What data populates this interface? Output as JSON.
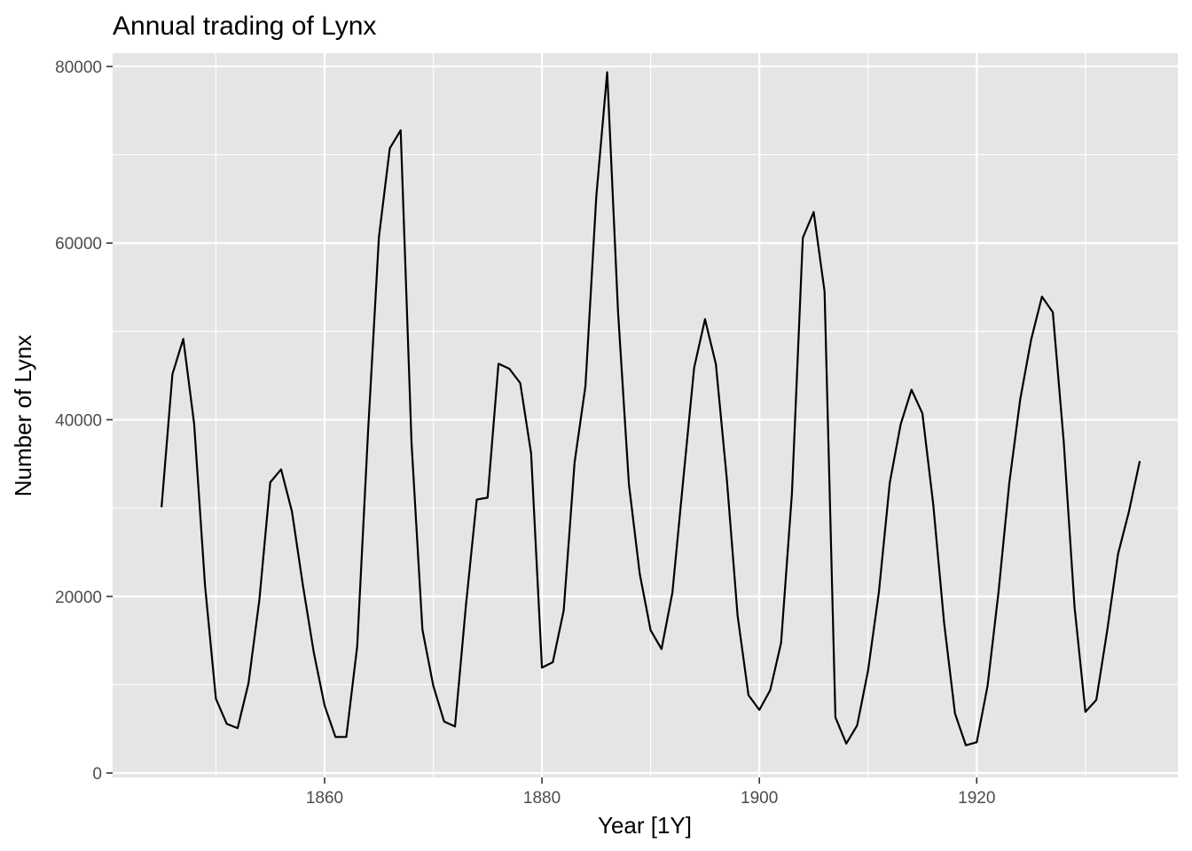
{
  "chart_data": {
    "type": "line",
    "title": "Annual trading of Lynx",
    "xlabel": "Year [1Y]",
    "ylabel": "Number of Lynx",
    "xlim": [
      1840.5,
      1938.5
    ],
    "ylim": [
      -500,
      81500
    ],
    "x_ticks": [
      1860,
      1880,
      1900,
      1920
    ],
    "x_minor_ticks": [
      1850,
      1870,
      1890,
      1910,
      1930
    ],
    "y_ticks": [
      0,
      20000,
      40000,
      60000,
      80000
    ],
    "y_minor_ticks": [
      10000,
      30000,
      50000,
      70000
    ],
    "x_tick_labels": [
      "1860",
      "1880",
      "1900",
      "1920"
    ],
    "y_tick_labels": [
      "0",
      "20000",
      "40000",
      "60000",
      "80000"
    ],
    "grid": true,
    "colors": {
      "panel": "#e5e5e5",
      "grid": "#ffffff",
      "line": "#000000"
    },
    "series": [
      {
        "x": [
          1845,
          1846,
          1847,
          1848,
          1849,
          1850,
          1851,
          1852,
          1853,
          1854,
          1855,
          1856,
          1857,
          1858,
          1859,
          1860,
          1861,
          1862,
          1863,
          1864,
          1865,
          1866,
          1867,
          1868,
          1869,
          1870,
          1871,
          1872,
          1873,
          1874,
          1875,
          1876,
          1877,
          1878,
          1879,
          1880,
          1881,
          1882,
          1883,
          1884,
          1885,
          1886,
          1887,
          1888,
          1889,
          1890,
          1891,
          1892,
          1893,
          1894,
          1895,
          1896,
          1897,
          1898,
          1899,
          1900,
          1901,
          1902,
          1903,
          1904,
          1905,
          1906,
          1907,
          1908,
          1909,
          1910,
          1911,
          1912,
          1913,
          1914,
          1915,
          1916,
          1917,
          1918,
          1919,
          1920,
          1921,
          1922,
          1923,
          1924,
          1925,
          1926,
          1927,
          1928,
          1929,
          1930,
          1931,
          1932,
          1933,
          1934,
          1935
        ],
        "values": [
          30090,
          45150,
          49150,
          39520,
          21230,
          8420,
          5560,
          5080,
          10170,
          19600,
          32910,
          34380,
          29590,
          21300,
          13690,
          7650,
          4080,
          4090,
          14330,
          38640,
          60700,
          70730,
          72770,
          37350,
          16250,
          9880,
          5820,
          5270,
          18920,
          30960,
          31180,
          46340,
          45770,
          44150,
          36200,
          11930,
          12550,
          18410,
          35150,
          43820,
          65300,
          79350,
          52210,
          32690,
          22520,
          16150,
          14030,
          20420,
          33220,
          45880,
          51380,
          46300,
          33400,
          17810,
          8820,
          7140,
          9380,
          14730,
          31690,
          60600,
          63520,
          54510,
          6290,
          3330,
          5390,
          11590,
          20490,
          32870,
          39470,
          43400,
          40720,
          30400,
          16980,
          6740,
          3140,
          3480,
          9890,
          20440,
          32880,
          42300,
          49030,
          53940,
          52170,
          37580,
          18780,
          6920,
          8270,
          16100,
          24800,
          29580,
          35320
        ]
      }
    ]
  }
}
